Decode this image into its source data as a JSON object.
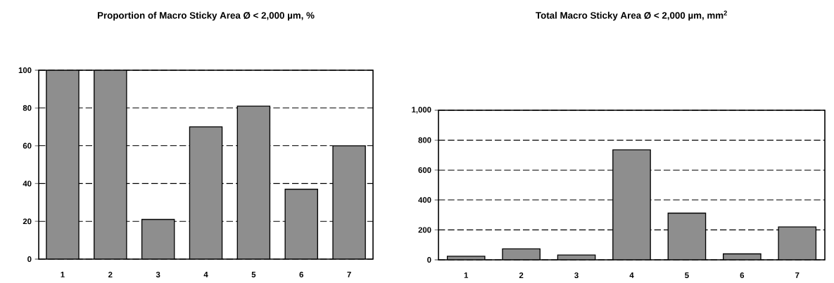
{
  "chart_data": [
    {
      "type": "bar",
      "title": "Proportion of Macro Sticky Area   Ø < 2,000 µm, %",
      "categories": [
        "1",
        "2",
        "3",
        "4",
        "5",
        "6",
        "7"
      ],
      "values": [
        100,
        100,
        21,
        70,
        81,
        37,
        60
      ],
      "color": "#8e8e8e",
      "ylim": [
        0,
        100
      ],
      "yticks": [
        0,
        20,
        40,
        60,
        80,
        100
      ],
      "grid": "y"
    },
    {
      "type": "bar",
      "title": "Total Macro  Sticky Area   Ø < 2,000 µm, mm$^{2}$",
      "categories": [
        "1",
        "2",
        "3",
        "4",
        "5",
        "6",
        "7"
      ],
      "values": [
        24,
        73,
        32,
        735,
        312,
        40,
        220
      ],
      "color": "#8e8e8e",
      "ylim": [
        0,
        1000
      ],
      "yticks": [
        0,
        200,
        400,
        600,
        800,
        {
          "value": 1000,
          "label": "1,000"
        }
      ],
      "grid": "y"
    }
  ]
}
